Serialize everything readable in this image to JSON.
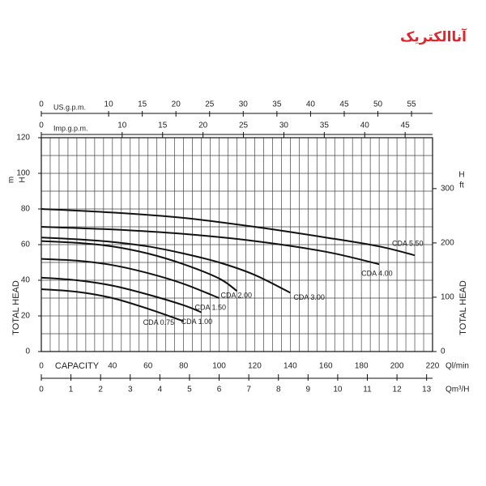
{
  "logo": "آناالکتریک",
  "chart_data": {
    "type": "line",
    "x_label": "CAPACITY",
    "x_unit": "Ql/min",
    "xlim": [
      0,
      220
    ],
    "xticks": [
      0,
      40,
      60,
      80,
      100,
      120,
      140,
      160,
      180,
      200,
      220
    ],
    "xgrid": [
      0,
      5,
      10,
      15,
      20,
      25,
      30,
      35,
      40,
      45,
      50,
      55,
      60,
      65,
      70,
      75,
      80,
      85,
      90,
      95,
      100,
      105,
      110,
      115,
      120,
      125,
      130,
      135,
      140,
      145,
      150,
      155,
      160,
      165,
      170,
      175,
      180,
      185,
      190,
      195,
      200,
      205,
      210,
      215,
      220
    ],
    "y_label": "TOTAL HEAD",
    "y_unit": [
      "m",
      "H"
    ],
    "ylim": [
      0,
      120
    ],
    "yticks": [
      0,
      20,
      40,
      60,
      80,
      100,
      120
    ],
    "ygrid": [
      0,
      10,
      20,
      30,
      40,
      50,
      60,
      70,
      80,
      90,
      100,
      110,
      120
    ],
    "y2_label": "TOTAL HEAD",
    "y2_unit": [
      "H",
      "ft"
    ],
    "y2lim": [
      0,
      393.7
    ],
    "y2ticks": [
      0,
      100,
      200,
      300
    ],
    "top_axes": [
      {
        "label": "US.g.p.m.",
        "xlim": [
          0,
          58.12
        ],
        "xticks": [
          0,
          10,
          15,
          20,
          25,
          30,
          35,
          40,
          45,
          50,
          55
        ]
      },
      {
        "label": "Imp.g.p.m.",
        "xlim": [
          0,
          48.39
        ],
        "xticks": [
          0,
          10,
          15,
          20,
          25,
          30,
          35,
          40,
          45
        ]
      }
    ],
    "bottom_axis2": {
      "label": "Qm³/H",
      "xlim": [
        0,
        13.2
      ],
      "xticks": [
        0,
        1,
        2,
        3,
        4,
        5,
        6,
        7,
        8,
        9,
        10,
        11,
        12,
        13
      ]
    },
    "grid": true,
    "series": [
      {
        "name": "CDA 0.75",
        "color": "#111111",
        "x": [
          0,
          20,
          40,
          60,
          80
        ],
        "values": [
          35,
          33.5,
          30,
          24,
          17
        ]
      },
      {
        "name": "CDA 1.00",
        "color": "#111111",
        "x": [
          0,
          20,
          40,
          60,
          80,
          90
        ],
        "values": [
          41.5,
          40,
          37,
          32,
          26,
          22
        ]
      },
      {
        "name": "CDA 1.50",
        "color": "#111111",
        "x": [
          0,
          20,
          40,
          60,
          80,
          100
        ],
        "values": [
          52,
          51,
          48.5,
          44,
          38,
          30
        ]
      },
      {
        "name": "CDA 2.00",
        "color": "#111111",
        "x": [
          0,
          20,
          40,
          60,
          80,
          100,
          110
        ],
        "values": [
          62,
          61,
          59,
          55,
          49,
          41,
          34
        ]
      },
      {
        "name": "CDA 3.00",
        "color": "#111111",
        "x": [
          0,
          20,
          40,
          60,
          80,
          100,
          120,
          140
        ],
        "values": [
          64,
          63,
          61.5,
          59,
          55,
          50,
          43,
          33
        ]
      },
      {
        "name": "CDA 4.00",
        "color": "#111111",
        "x": [
          0,
          40,
          80,
          120,
          160,
          190
        ],
        "values": [
          70,
          68.5,
          66,
          62,
          56,
          49
        ]
      },
      {
        "name": "CDA 5.50",
        "color": "#111111",
        "x": [
          0,
          40,
          80,
          120,
          160,
          190,
          210
        ],
        "values": [
          80,
          78,
          75,
          70,
          64,
          59,
          54
        ]
      }
    ]
  }
}
